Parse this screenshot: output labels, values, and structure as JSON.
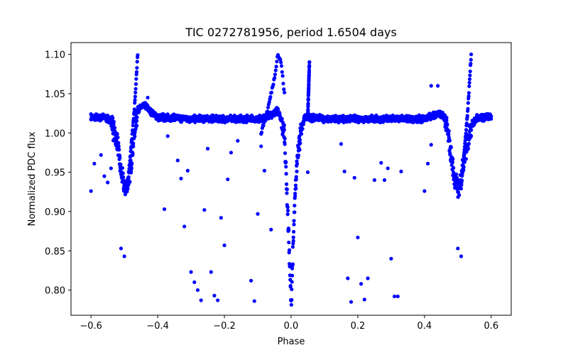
{
  "chart_data": {
    "type": "scatter",
    "title": "TIC 0272781956, period 1.6504 days",
    "xlabel": "Phase",
    "ylabel": "Normalized PDC flux",
    "xlim": [
      -0.66,
      0.66
    ],
    "ylim": [
      0.768,
      1.115
    ],
    "xticks": [
      -0.6,
      -0.4,
      -0.2,
      0.0,
      0.2,
      0.4,
      0.6
    ],
    "xtick_labels": [
      "−0.6",
      "−0.4",
      "−0.2",
      "0.0",
      "0.2",
      "0.4",
      "0.6"
    ],
    "yticks": [
      0.8,
      0.85,
      0.9,
      0.95,
      1.0,
      1.05,
      1.1
    ],
    "ytick_labels": [
      "0.80",
      "0.85",
      "0.90",
      "0.95",
      "1.00",
      "1.05",
      "1.10"
    ],
    "grid": false,
    "marker_color": "#0000ff",
    "series": [
      {
        "color": "#0000ff",
        "baseline": [
          [
            -0.6,
            1.02
          ],
          [
            -0.56,
            1.02
          ],
          [
            -0.54,
            1.015
          ],
          [
            -0.52,
            0.985
          ],
          [
            -0.51,
            0.95
          ],
          [
            -0.5,
            0.93
          ],
          [
            -0.49,
            0.935
          ],
          [
            -0.48,
            0.96
          ],
          [
            -0.47,
            1.0
          ],
          [
            -0.46,
            1.03
          ],
          [
            -0.44,
            1.035
          ],
          [
            -0.4,
            1.02
          ],
          [
            -0.3,
            1.018
          ],
          [
            -0.2,
            1.018
          ],
          [
            -0.1,
            1.018
          ],
          [
            -0.06,
            1.022
          ],
          [
            -0.04,
            1.03
          ],
          [
            -0.02,
            1.0
          ],
          [
            -0.01,
            0.9
          ],
          [
            0.0,
            0.78
          ],
          [
            0.01,
            0.9
          ],
          [
            0.02,
            0.98
          ],
          [
            0.04,
            1.02
          ],
          [
            0.1,
            1.018
          ],
          [
            0.2,
            1.018
          ],
          [
            0.3,
            1.018
          ],
          [
            0.4,
            1.018
          ],
          [
            0.44,
            1.025
          ],
          [
            0.46,
            1.02
          ],
          [
            0.47,
            1.0
          ],
          [
            0.48,
            0.97
          ],
          [
            0.49,
            0.94
          ],
          [
            0.5,
            0.93
          ],
          [
            0.51,
            0.94
          ],
          [
            0.52,
            0.97
          ],
          [
            0.54,
            1.01
          ],
          [
            0.56,
            1.02
          ],
          [
            0.6,
            1.02
          ]
        ],
        "branches": [
          [
            [
              -0.49,
              0.93
            ],
            [
              -0.48,
              0.98
            ],
            [
              -0.47,
              1.03
            ],
            [
              -0.46,
              1.1
            ]
          ],
          [
            [
              -0.09,
              1.0
            ],
            [
              -0.07,
              1.03
            ],
            [
              -0.05,
              1.07
            ],
            [
              -0.04,
              1.1
            ],
            [
              -0.03,
              1.09
            ],
            [
              -0.02,
              1.05
            ]
          ],
          [
            [
              0.05,
              1.02
            ],
            [
              0.052,
              1.05
            ],
            [
              0.055,
              1.09
            ]
          ],
          [
            [
              0.51,
              0.93
            ],
            [
              0.52,
              0.98
            ],
            [
              0.53,
              1.03
            ],
            [
              0.54,
              1.1
            ]
          ]
        ],
        "outliers": [
          [
            -0.6,
            0.926
          ],
          [
            -0.59,
            0.961
          ],
          [
            -0.57,
            0.972
          ],
          [
            -0.56,
            0.945
          ],
          [
            -0.55,
            0.937
          ],
          [
            -0.54,
            0.955
          ],
          [
            -0.51,
            0.853
          ],
          [
            -0.5,
            0.843
          ],
          [
            -0.38,
            0.903
          ],
          [
            -0.37,
            0.996
          ],
          [
            -0.34,
            0.965
          ],
          [
            -0.33,
            0.942
          ],
          [
            -0.32,
            0.881
          ],
          [
            -0.31,
            0.952
          ],
          [
            -0.3,
            0.823
          ],
          [
            -0.29,
            0.81
          ],
          [
            -0.28,
            0.8
          ],
          [
            -0.27,
            0.787
          ],
          [
            -0.26,
            0.902
          ],
          [
            -0.25,
            0.98
          ],
          [
            -0.24,
            0.823
          ],
          [
            -0.23,
            0.793
          ],
          [
            -0.22,
            0.787
          ],
          [
            -0.21,
            0.892
          ],
          [
            -0.2,
            0.857
          ],
          [
            -0.19,
            0.941
          ],
          [
            -0.18,
            0.975
          ],
          [
            -0.16,
            0.99
          ],
          [
            -0.12,
            0.812
          ],
          [
            -0.11,
            0.786
          ],
          [
            -0.1,
            0.897
          ],
          [
            -0.09,
            0.983
          ],
          [
            -0.08,
            0.952
          ],
          [
            -0.06,
            0.877
          ],
          [
            0.15,
            0.986
          ],
          [
            0.16,
            0.951
          ],
          [
            0.17,
            0.815
          ],
          [
            0.18,
            0.785
          ],
          [
            0.19,
            0.943
          ],
          [
            0.2,
            0.867
          ],
          [
            0.21,
            0.808
          ],
          [
            0.22,
            0.788
          ],
          [
            0.23,
            0.815
          ],
          [
            0.25,
            0.94
          ],
          [
            0.27,
            0.962
          ],
          [
            0.28,
            0.94
          ],
          [
            0.29,
            0.955
          ],
          [
            0.3,
            0.84
          ],
          [
            0.31,
            0.792
          ],
          [
            0.32,
            0.792
          ],
          [
            0.33,
            0.951
          ],
          [
            0.4,
            0.926
          ],
          [
            0.41,
            0.961
          ],
          [
            0.42,
            0.985
          ],
          [
            0.5,
            0.853
          ],
          [
            0.51,
            0.843
          ],
          [
            0.44,
            1.06
          ],
          [
            0.42,
            1.06
          ],
          [
            -0.43,
            1.045
          ],
          [
            0.05,
            0.95
          ]
        ]
      }
    ]
  }
}
